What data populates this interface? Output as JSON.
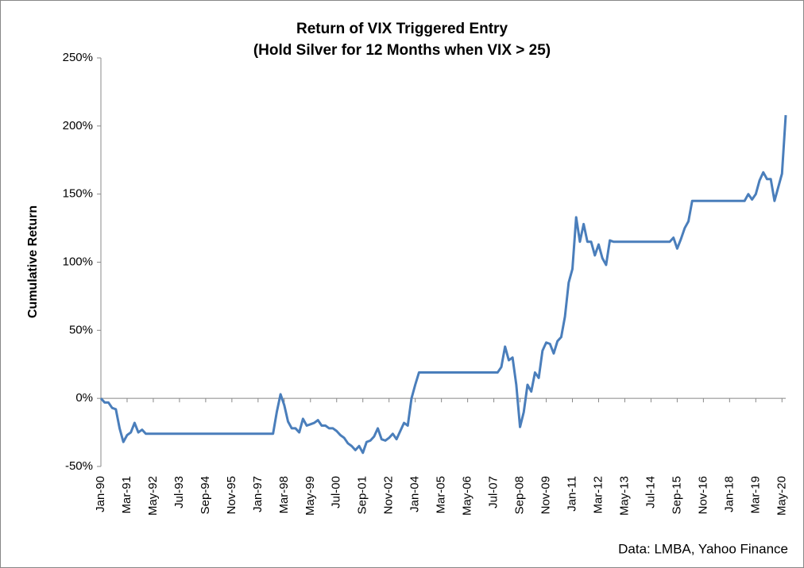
{
  "chart_data": {
    "type": "line",
    "title": "Return of VIX Triggered Entry",
    "subtitle": "(Hold Silver for 12 Months when VIX > 25)",
    "y_label": "Cumulative Return",
    "source": "Data: LMBA, Yahoo Finance",
    "categories": [
      "Jan-90",
      null,
      null,
      null,
      null,
      null,
      null,
      "Mar-91",
      null,
      null,
      null,
      null,
      null,
      null,
      "May-92",
      null,
      null,
      null,
      null,
      null,
      null,
      "Jul-93",
      null,
      null,
      null,
      null,
      null,
      null,
      "Sep-94",
      null,
      null,
      null,
      null,
      null,
      null,
      "Nov-95",
      null,
      null,
      null,
      null,
      null,
      null,
      "Jan-97",
      null,
      null,
      null,
      null,
      null,
      null,
      "Mar-98",
      null,
      null,
      null,
      null,
      null,
      null,
      "May-99",
      null,
      null,
      null,
      null,
      null,
      null,
      "Jul-00",
      null,
      null,
      null,
      null,
      null,
      null,
      "Sep-01",
      null,
      null,
      null,
      null,
      null,
      null,
      "Nov-02",
      null,
      null,
      null,
      null,
      null,
      null,
      "Jan-04",
      null,
      null,
      null,
      null,
      null,
      null,
      "Mar-05",
      null,
      null,
      null,
      null,
      null,
      null,
      "May-06",
      null,
      null,
      null,
      null,
      null,
      null,
      "Jul-07",
      null,
      null,
      null,
      null,
      null,
      null,
      "Sep-08",
      null,
      null,
      null,
      null,
      null,
      null,
      "Nov-09",
      null,
      null,
      null,
      null,
      null,
      null,
      "Jan-11",
      null,
      null,
      null,
      null,
      null,
      null,
      "Mar-12",
      null,
      null,
      null,
      null,
      null,
      null,
      "May-13",
      null,
      null,
      null,
      null,
      null,
      null,
      "Jul-14",
      null,
      null,
      null,
      null,
      null,
      null,
      "Sep-15",
      null,
      null,
      null,
      null,
      null,
      null,
      "Nov-16",
      null,
      null,
      null,
      null,
      null,
      null,
      "Jan-18",
      null,
      null,
      null,
      null,
      null,
      null,
      "Mar-19",
      null,
      null,
      null,
      null,
      null,
      null,
      "May-20",
      null
    ],
    "series": [
      {
        "color": "#4a7ebb",
        "values": [
          0,
          -3,
          -3,
          -7,
          -8,
          -22,
          -32,
          -27,
          -25,
          -18,
          -25,
          -23,
          -26,
          -26,
          -26,
          -26,
          -26,
          -26,
          -26,
          -26,
          -26,
          -26,
          -26,
          -26,
          -26,
          -26,
          -26,
          -26,
          -26,
          -26,
          -26,
          -26,
          -26,
          -26,
          -26,
          -26,
          -26,
          -26,
          -26,
          -26,
          -26,
          -26,
          -26,
          -26,
          -26,
          -26,
          -26,
          -10,
          3,
          -5,
          -17,
          -22,
          -22,
          -25,
          -15,
          -20,
          -19,
          -18,
          -16,
          -20,
          -20,
          -22,
          -22,
          -24,
          -27,
          -29,
          -33,
          -35,
          -38,
          -35,
          -40,
          -32,
          -31,
          -28,
          -22,
          -30,
          -31,
          -29,
          -26,
          -30,
          -24,
          -18,
          -20,
          0,
          10,
          19,
          19,
          19,
          19,
          19,
          19,
          19,
          19,
          19,
          19,
          19,
          19,
          19,
          19,
          19,
          19,
          19,
          19,
          19,
          19,
          19,
          19,
          23,
          38,
          28,
          30,
          10,
          -21,
          -10,
          10,
          5,
          19,
          15,
          35,
          41,
          40,
          33,
          42,
          45,
          60,
          85,
          95,
          133,
          115,
          128,
          115,
          115,
          105,
          113,
          103,
          98,
          116,
          115,
          115,
          115,
          115,
          115,
          115,
          115,
          115,
          115,
          115,
          115,
          115,
          115,
          115,
          115,
          115,
          118,
          110,
          117,
          125,
          130,
          145,
          145,
          145,
          145,
          145,
          145,
          145,
          145,
          145,
          145,
          145,
          145,
          145,
          145,
          145,
          150,
          146,
          150,
          160,
          166,
          161,
          161,
          145,
          155,
          165,
          208
        ]
      }
    ],
    "ylim": [
      -50,
      250
    ],
    "yticks": [
      {
        "value": -50,
        "label": "-50%"
      },
      {
        "value": 0,
        "label": "0%"
      },
      {
        "value": 50,
        "label": "50%"
      },
      {
        "value": 100,
        "label": "100%"
      },
      {
        "value": 150,
        "label": "150%"
      },
      {
        "value": 200,
        "label": "200%"
      },
      {
        "value": 250,
        "label": "250%"
      }
    ],
    "grid": false
  }
}
